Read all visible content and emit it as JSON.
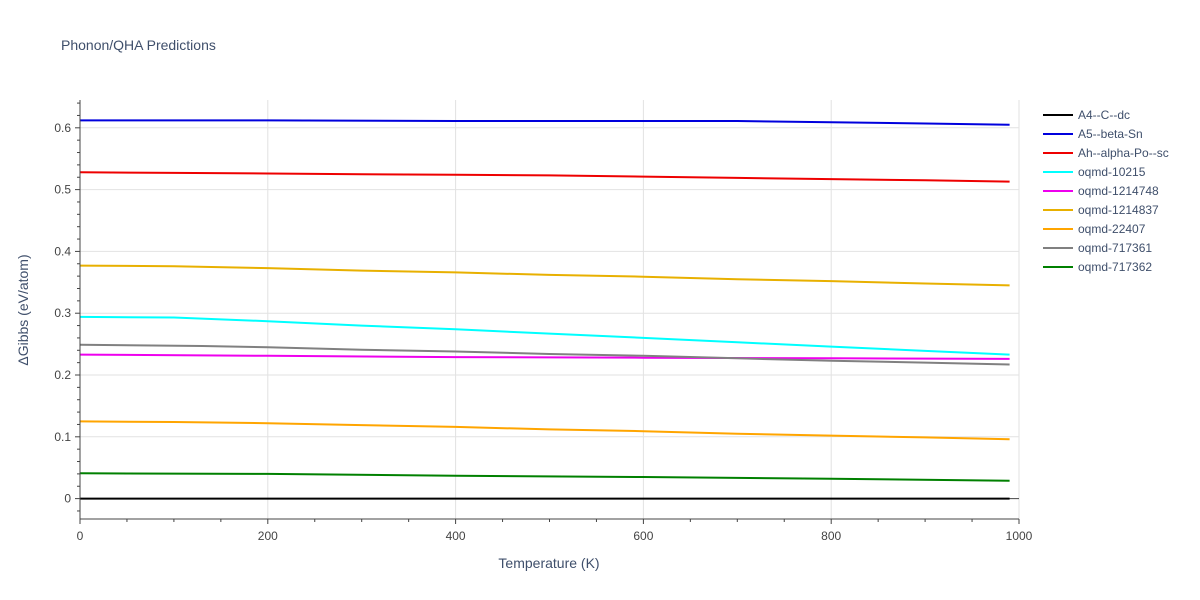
{
  "chart_data": {
    "type": "line",
    "title": "Phonon/QHA Predictions",
    "xlabel": "Temperature (K)",
    "ylabel": "ΔGibbs (eV/atom)",
    "xlim": [
      0,
      1000
    ],
    "ylim": [
      -0.033,
      0.645
    ],
    "xticks": [
      0,
      200,
      400,
      600,
      800,
      1000
    ],
    "xtick_labels": [
      "0",
      "200",
      "400",
      "600",
      "800",
      "1000"
    ],
    "yticks": [
      0,
      0.1,
      0.2,
      0.3,
      0.4,
      0.5,
      0.6
    ],
    "ytick_labels": [
      "0",
      "0.1",
      "0.2",
      "0.3",
      "0.4",
      "0.5",
      "0.6"
    ],
    "grid": true,
    "legend_position": "right",
    "series": [
      {
        "name": "A4--C--dc",
        "color": "#000000",
        "x": [
          0,
          990
        ],
        "y": [
          0.0,
          0.0
        ]
      },
      {
        "name": "A5--beta-Sn",
        "color": "#0000dd",
        "x": [
          0,
          200,
          400,
          600,
          700,
          800,
          900,
          990
        ],
        "y": [
          0.612,
          0.612,
          0.611,
          0.611,
          0.611,
          0.609,
          0.607,
          0.605
        ]
      },
      {
        "name": "Ah--alpha-Po--sc",
        "color": "#ee0000",
        "x": [
          0,
          100,
          200,
          300,
          400,
          500,
          600,
          700,
          800,
          900,
          990
        ],
        "y": [
          0.528,
          0.527,
          0.526,
          0.525,
          0.524,
          0.523,
          0.521,
          0.519,
          0.517,
          0.515,
          0.513
        ]
      },
      {
        "name": "oqmd-10215",
        "color": "#00ffff",
        "x": [
          0,
          100,
          200,
          300,
          400,
          500,
          600,
          700,
          800,
          900,
          990
        ],
        "y": [
          0.294,
          0.293,
          0.287,
          0.28,
          0.274,
          0.267,
          0.26,
          0.253,
          0.246,
          0.239,
          0.233
        ]
      },
      {
        "name": "oqmd-1214748",
        "color": "#ee00ee",
        "x": [
          0,
          200,
          400,
          600,
          800,
          990
        ],
        "y": [
          0.233,
          0.231,
          0.229,
          0.228,
          0.227,
          0.226
        ]
      },
      {
        "name": "oqmd-1214837",
        "color": "#e8b000",
        "x": [
          0,
          100,
          200,
          300,
          400,
          500,
          600,
          700,
          800,
          900,
          990
        ],
        "y": [
          0.377,
          0.376,
          0.373,
          0.369,
          0.366,
          0.362,
          0.359,
          0.355,
          0.352,
          0.348,
          0.345
        ]
      },
      {
        "name": "oqmd-22407",
        "color": "#ffa500",
        "x": [
          0,
          100,
          200,
          300,
          400,
          500,
          600,
          700,
          800,
          900,
          990
        ],
        "y": [
          0.125,
          0.124,
          0.122,
          0.119,
          0.116,
          0.112,
          0.109,
          0.105,
          0.102,
          0.099,
          0.096
        ]
      },
      {
        "name": "oqmd-717361",
        "color": "#808080",
        "x": [
          0,
          130,
          200,
          300,
          400,
          500,
          600,
          700,
          800,
          900,
          990
        ],
        "y": [
          0.249,
          0.247,
          0.245,
          0.241,
          0.238,
          0.234,
          0.231,
          0.227,
          0.223,
          0.22,
          0.217
        ]
      },
      {
        "name": "oqmd-717362",
        "color": "#008000",
        "x": [
          0,
          200,
          400,
          600,
          800,
          990
        ],
        "y": [
          0.041,
          0.04,
          0.037,
          0.035,
          0.032,
          0.029
        ]
      }
    ]
  }
}
